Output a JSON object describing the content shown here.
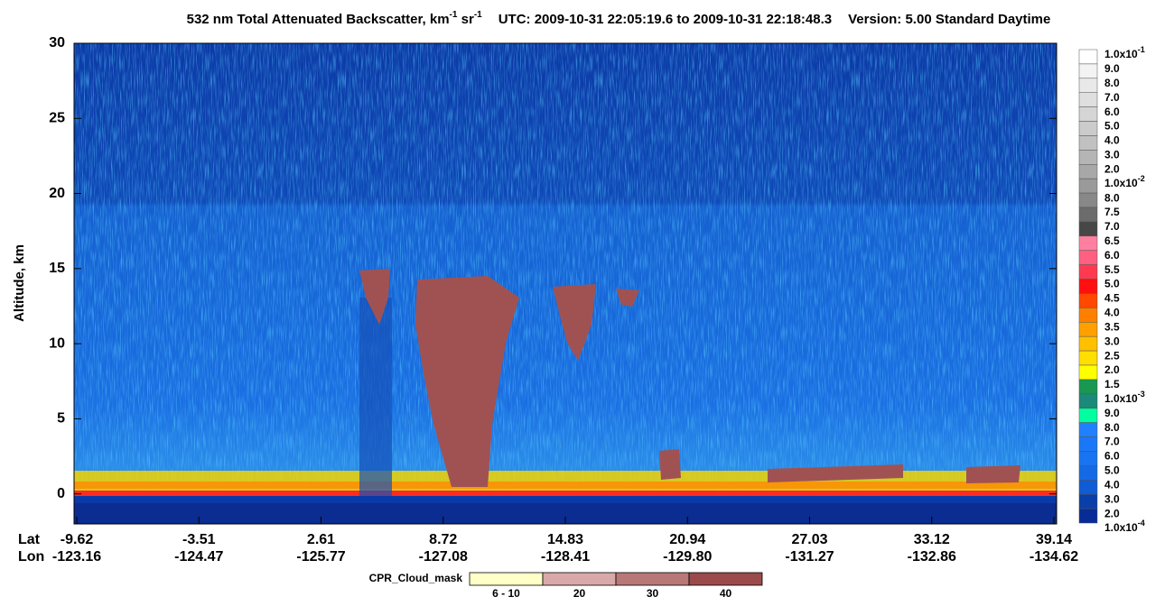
{
  "chart_data": {
    "type": "curtain",
    "title": {
      "main": "532 nm Total Attenuated Backscatter, km",
      "sup1": "-1",
      "mid": " sr",
      "sup2": "-1",
      "utc": "UTC:  2009-10-31 22:05:19.6  to  2009-10-31 22:18:48.3",
      "version": "Version: 5.00  Standard  Daytime"
    },
    "ylabel": "Altitude, km",
    "ylim": [
      -2,
      30
    ],
    "yticks": [
      0,
      5,
      10,
      15,
      20,
      25,
      30
    ],
    "x_row_labels": [
      "Lat",
      "Lon"
    ],
    "lat": [
      "-9.62",
      "-3.51",
      "2.61",
      "8.72",
      "14.83",
      "20.94",
      "27.03",
      "33.12",
      "39.14"
    ],
    "lon": [
      "-123.16",
      "-124.47",
      "-125.77",
      "-127.08",
      "-128.41",
      "-129.80",
      "-131.27",
      "-132.86",
      "-134.62"
    ],
    "colorbar": {
      "labels": [
        {
          "base": "1.0x10",
          "exp": "-1"
        },
        "9.0",
        "8.0",
        "7.0",
        "6.0",
        "5.0",
        "4.0",
        "3.0",
        "2.0",
        {
          "base": "1.0x10",
          "exp": "-2"
        },
        "8.0",
        "7.5",
        "7.0",
        "6.5",
        "6.0",
        "5.5",
        "5.0",
        "4.5",
        "4.0",
        "3.5",
        "3.0",
        "2.5",
        "2.0",
        "1.5",
        {
          "base": "1.0x10",
          "exp": "-3"
        },
        "9.0",
        "8.0",
        "7.0",
        "6.0",
        "5.0",
        "4.0",
        "3.0",
        "2.0",
        {
          "base": "1.0x10",
          "exp": "-4"
        }
      ],
      "colors": [
        "#ffffff",
        "#f3f3f3",
        "#e9e9e9",
        "#dfdfdf",
        "#d5d5d5",
        "#cbcbcb",
        "#c1c1c1",
        "#b5b5b5",
        "#a8a8a8",
        "#9a9a9a",
        "#888888",
        "#6c6c6c",
        "#474747",
        "#ff7fa0",
        "#ff5f80",
        "#ff3a50",
        "#ff1010",
        "#ff4800",
        "#ff7f00",
        "#ffa000",
        "#ffc000",
        "#ffdf00",
        "#ffff00",
        "#189850",
        "#1c8a78",
        "#00ffa0",
        "#2080ff",
        "#1a78f8",
        "#1874f0",
        "#146ae6",
        "#0f5cd6",
        "#0a3ea8",
        "#072c98"
      ]
    },
    "cpr_legend": {
      "title": "CPR_Cloud_mask",
      "labels": [
        "6 - 10",
        "20",
        "30",
        "40"
      ],
      "colors": [
        "#ffffc8",
        "#d9a9a9",
        "#b87878",
        "#9a4a4a"
      ]
    }
  }
}
